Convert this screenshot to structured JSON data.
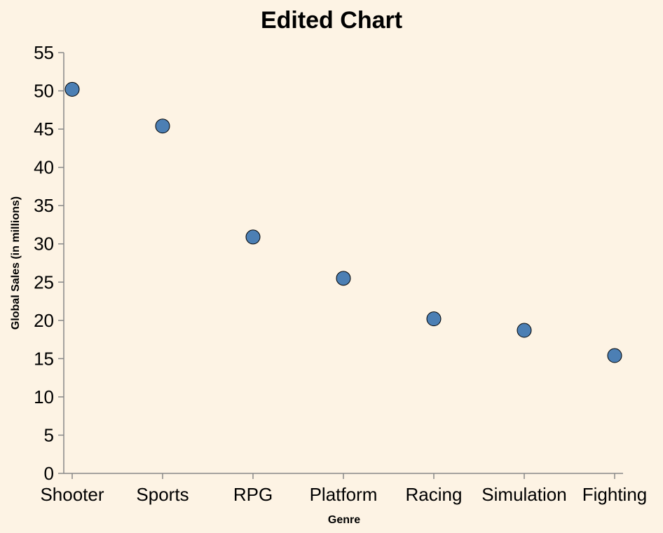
{
  "chart_data": {
    "type": "scatter",
    "title": "Edited Chart",
    "xlabel": "Genre",
    "ylabel": "Global Sales (in millions)",
    "categories": [
      "Shooter",
      "Sports",
      "RPG",
      "Platform",
      "Racing",
      "Simulation",
      "Fighting"
    ],
    "values": [
      50.2,
      45.4,
      30.9,
      25.5,
      20.2,
      18.7,
      15.4
    ],
    "ylim": [
      0,
      55
    ],
    "yticks": [
      0,
      5,
      10,
      15,
      20,
      25,
      30,
      35,
      40,
      45,
      50,
      55
    ],
    "grid": false,
    "point_color": "#4c7fb4",
    "background": "#fdf3e4"
  }
}
